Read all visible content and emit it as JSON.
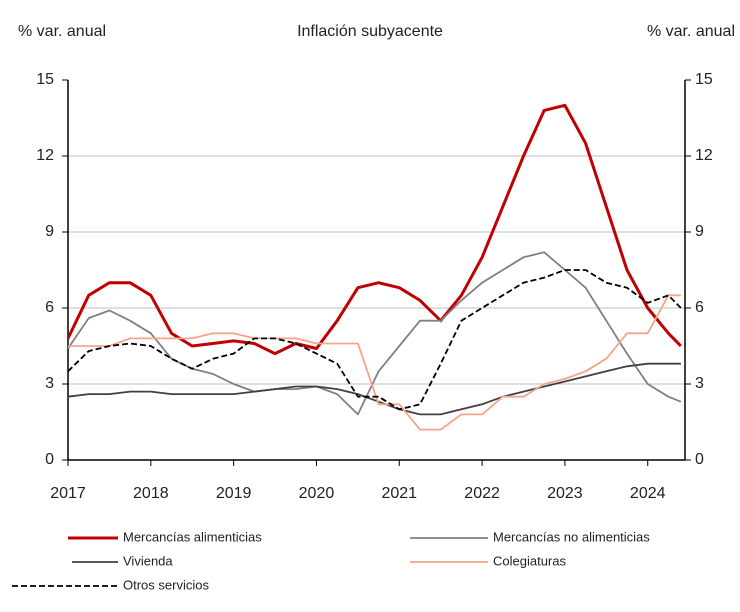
{
  "chart_data": {
    "type": "line",
    "title": "Inflación subyacente",
    "ylabel": "% var. anual",
    "y2label": "% var. anual",
    "x": [
      2017,
      2017.25,
      2017.5,
      2017.75,
      2018,
      2018.25,
      2018.5,
      2018.75,
      2019,
      2019.25,
      2019.5,
      2019.75,
      2020,
      2020.25,
      2020.5,
      2020.75,
      2021,
      2021.25,
      2021.5,
      2021.75,
      2022,
      2022.25,
      2022.5,
      2022.75,
      2023,
      2023.25,
      2023.5,
      2023.75,
      2024,
      2024.25,
      2024.4
    ],
    "xlim": [
      2017,
      2024.45
    ],
    "xticks": [
      2017,
      2018,
      2019,
      2020,
      2021,
      2022,
      2023,
      2024
    ],
    "ylim": [
      0,
      15
    ],
    "yticks": [
      0,
      3,
      6,
      9,
      12,
      15
    ],
    "y2lim": [
      0,
      15
    ],
    "y2ticks": [
      0,
      3,
      6,
      9,
      12,
      15
    ],
    "grid": true,
    "legend": "bottom",
    "series": [
      {
        "name": "Mercancías alimenticias",
        "color": "#c00000",
        "style": "solid",
        "values": [
          4.8,
          6.5,
          7.0,
          7.0,
          6.5,
          5.0,
          4.5,
          4.6,
          4.7,
          4.6,
          4.2,
          4.6,
          4.4,
          5.5,
          6.8,
          7.0,
          6.8,
          6.3,
          5.5,
          6.5,
          8.0,
          10.0,
          12.0,
          13.8,
          14.0,
          12.5,
          10.0,
          7.5,
          6.0,
          5.0,
          4.5
        ]
      },
      {
        "name": "Mercancías no alimenticias",
        "color": "#808080",
        "style": "solid",
        "values": [
          4.4,
          5.6,
          5.9,
          5.5,
          5.0,
          4.0,
          3.6,
          3.4,
          3.0,
          2.7,
          2.8,
          2.8,
          2.9,
          2.6,
          1.8,
          3.5,
          4.5,
          5.5,
          5.5,
          6.3,
          7.0,
          7.5,
          8.0,
          8.2,
          7.5,
          6.8,
          5.5,
          4.2,
          3.0,
          2.5,
          2.3
        ]
      },
      {
        "name": "Vivienda",
        "color": "#404040",
        "style": "solid",
        "values": [
          2.5,
          2.6,
          2.6,
          2.7,
          2.7,
          2.6,
          2.6,
          2.6,
          2.6,
          2.7,
          2.8,
          2.9,
          2.9,
          2.8,
          2.6,
          2.3,
          2.0,
          1.8,
          1.8,
          2.0,
          2.2,
          2.5,
          2.7,
          2.9,
          3.1,
          3.3,
          3.5,
          3.7,
          3.8,
          3.8,
          3.8
        ]
      },
      {
        "name": "Colegiaturas",
        "color": "#f4a58a",
        "style": "solid",
        "values": [
          4.5,
          4.5,
          4.5,
          4.8,
          4.8,
          4.8,
          4.8,
          5.0,
          5.0,
          4.8,
          4.8,
          4.8,
          4.6,
          4.6,
          4.6,
          2.2,
          2.2,
          1.2,
          1.2,
          1.8,
          1.8,
          2.5,
          2.5,
          3.0,
          3.2,
          3.5,
          4.0,
          5.0,
          5.0,
          6.5,
          6.5
        ]
      },
      {
        "name": "Otros servicios",
        "color": "#000000",
        "style": "dashed",
        "values": [
          3.5,
          4.3,
          4.5,
          4.6,
          4.5,
          4.0,
          3.6,
          4.0,
          4.2,
          4.8,
          4.8,
          4.6,
          4.2,
          3.8,
          2.5,
          2.5,
          2.0,
          2.2,
          3.8,
          5.5,
          6.0,
          6.5,
          7.0,
          7.2,
          7.5,
          7.5,
          7.0,
          6.8,
          6.2,
          6.5,
          6.0
        ]
      }
    ]
  }
}
